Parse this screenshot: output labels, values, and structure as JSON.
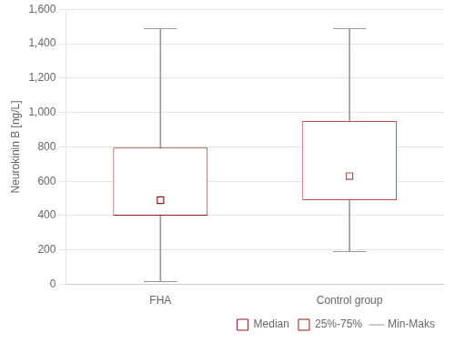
{
  "chart_data": {
    "type": "box",
    "categories": [
      "FHA",
      "Control group"
    ],
    "colors": [
      "#8B1A1A",
      "#B05050"
    ],
    "ylabel": "Neurokinin B [ng/L]",
    "ylim": [
      0,
      1600
    ],
    "yticks": [
      0,
      200,
      400,
      600,
      800,
      1000,
      1200,
      1400,
      1600
    ],
    "grid": "y",
    "legend": "lower right",
    "series": [
      {
        "name": "Median",
        "type": "median",
        "marker": "square",
        "values": [
          490,
          630
        ]
      },
      {
        "name": "25%-75%",
        "type": "box",
        "values": [
          [
            400,
            795
          ],
          [
            490,
            950
          ]
        ]
      },
      {
        "name": "Min-Maks",
        "type": "whisker",
        "color": "#999999",
        "values": [
          [
            20,
            1490
          ],
          [
            195,
            1490
          ]
        ]
      }
    ]
  }
}
